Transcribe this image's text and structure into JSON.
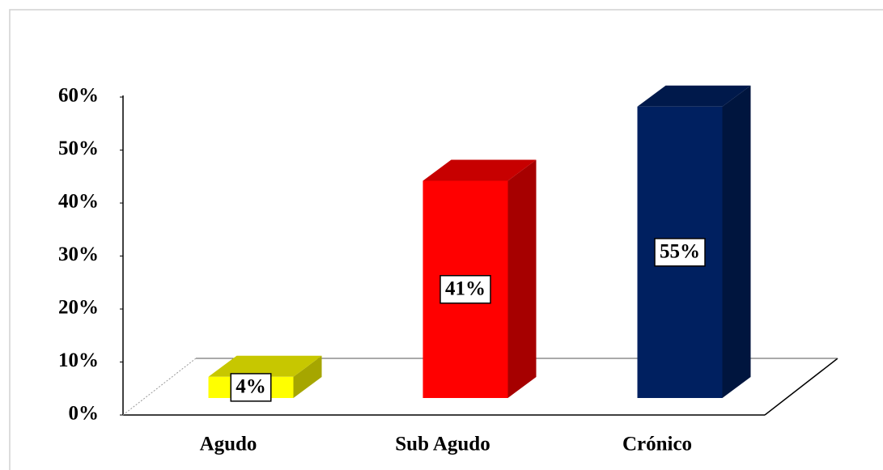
{
  "chart_data": {
    "type": "bar3d",
    "categories": [
      "Agudo",
      "Sub Agudo",
      "Crónico"
    ],
    "values": [
      4,
      41,
      55
    ],
    "value_labels": [
      "4%",
      "41%",
      "55%"
    ],
    "colors": [
      "#ffff00",
      "#ff0000",
      "#002060"
    ],
    "ylim": [
      0,
      60
    ],
    "yticks": [
      {
        "value": 0,
        "label": "0%"
      },
      {
        "value": 10,
        "label": "10%"
      },
      {
        "value": 20,
        "label": "20%"
      },
      {
        "value": 30,
        "label": "30%"
      },
      {
        "value": 40,
        "label": "40%"
      },
      {
        "value": 50,
        "label": "50%"
      },
      {
        "value": 60,
        "label": "60%"
      }
    ]
  }
}
